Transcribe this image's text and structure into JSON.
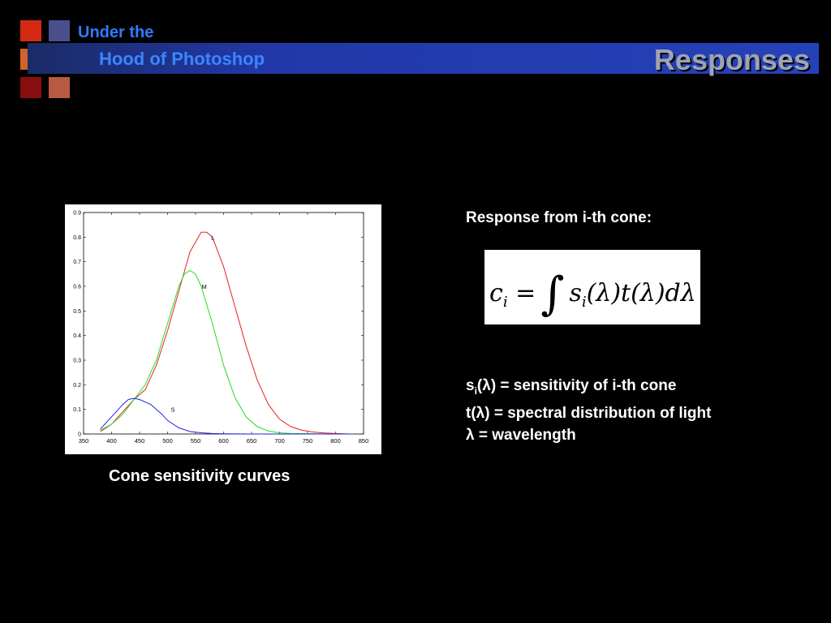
{
  "header": {
    "brand_line1": "Under the",
    "brand_line2": "Hood of Photoshop",
    "title": "Responses",
    "logo_colors": [
      "#d42a14",
      "#4b4f8c",
      "#d2622a",
      "#b52a3e",
      "#8a0e10",
      "#b85a42"
    ]
  },
  "caption": "Cone sensitivity curves",
  "right": {
    "response_label": "Response from i-th cone:",
    "formula": {
      "lhs": "c",
      "lhs_sub": "i",
      "equals": "=",
      "integral": "∫",
      "rhs_s": "s",
      "rhs_sub": "i",
      "rhs_rest": "(λ)t(λ)dλ"
    },
    "def1": {
      "s": "s",
      "sub": "i",
      "rest": "(λ) = sensitivity of i-th cone"
    },
    "def2": "t(λ) = spectral distribution of light",
    "def3": "λ = wavelength"
  },
  "chart_data": {
    "type": "line",
    "xlim": [
      350,
      850
    ],
    "ylim": [
      0,
      0.9
    ],
    "xticks": [
      350,
      400,
      450,
      500,
      550,
      600,
      650,
      700,
      750,
      800,
      850
    ],
    "yticks": [
      0,
      0.1,
      0.2,
      0.3,
      0.4,
      0.5,
      0.6,
      0.7,
      0.8,
      0.9
    ],
    "grid": false,
    "series": [
      {
        "name": "L",
        "color": "#e82020",
        "x": [
          380,
          400,
          420,
          440,
          460,
          480,
          500,
          520,
          540,
          560,
          570,
          580,
          600,
          620,
          640,
          660,
          680,
          700,
          720,
          740,
          760,
          780,
          800,
          825
        ],
        "y": [
          0.01,
          0.04,
          0.09,
          0.14,
          0.18,
          0.28,
          0.42,
          0.58,
          0.74,
          0.82,
          0.82,
          0.8,
          0.68,
          0.52,
          0.36,
          0.22,
          0.12,
          0.06,
          0.03,
          0.015,
          0.008,
          0.004,
          0.002,
          0.0
        ]
      },
      {
        "name": "M",
        "color": "#22dd22",
        "x": [
          380,
          400,
          420,
          440,
          460,
          480,
          500,
          520,
          530,
          540,
          550,
          560,
          580,
          600,
          620,
          640,
          660,
          680,
          700,
          720,
          760,
          800,
          825
        ],
        "y": [
          0.015,
          0.04,
          0.08,
          0.14,
          0.2,
          0.3,
          0.45,
          0.6,
          0.65,
          0.665,
          0.65,
          0.6,
          0.45,
          0.28,
          0.15,
          0.07,
          0.03,
          0.012,
          0.005,
          0.002,
          0.001,
          0.0,
          0.0
        ]
      },
      {
        "name": "S",
        "color": "#2222dd",
        "x": [
          380,
          400,
          420,
          430,
          440,
          450,
          460,
          470,
          480,
          490,
          500,
          520,
          540,
          560,
          580,
          600,
          650,
          700,
          825
        ],
        "y": [
          0.02,
          0.07,
          0.12,
          0.14,
          0.145,
          0.14,
          0.13,
          0.12,
          0.1,
          0.08,
          0.055,
          0.025,
          0.01,
          0.005,
          0.002,
          0.001,
          0.0,
          0.0,
          0.0
        ]
      }
    ],
    "labels": [
      {
        "text": "L",
        "x": 572,
        "y": 0.8
      },
      {
        "text": "M",
        "x": 555,
        "y": 0.6
      },
      {
        "text": "S",
        "x": 500,
        "y": 0.1
      }
    ]
  }
}
